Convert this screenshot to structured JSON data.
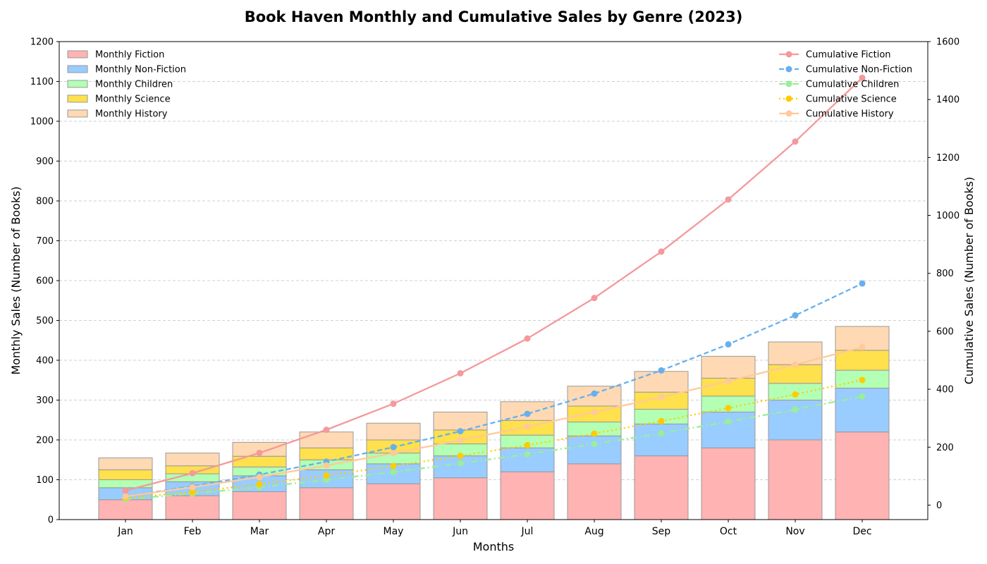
{
  "chart_data": {
    "type": "bar",
    "title": "Book Haven Monthly and Cumulative Sales by Genre (2023)",
    "xlabel": "Months",
    "ylabel": "Monthly Sales (Number of Books)",
    "y2label": "Cumulative Sales (Number of Books)",
    "categories": [
      "Jan",
      "Feb",
      "Mar",
      "Apr",
      "May",
      "Jun",
      "Jul",
      "Aug",
      "Sep",
      "Oct",
      "Nov",
      "Dec"
    ],
    "ylim": [
      0,
      1200
    ],
    "yticks": [
      0,
      100,
      200,
      300,
      400,
      500,
      600,
      700,
      800,
      900,
      1000,
      1100,
      1200
    ],
    "y2lim": [
      -50,
      1600
    ],
    "y2ticks": [
      0,
      200,
      400,
      600,
      800,
      1000,
      1200,
      1400,
      1600
    ],
    "grid": true,
    "bar_legend_placement": "top-left",
    "line_legend_placement": "top-right",
    "bar_series": [
      {
        "name": "Monthly Fiction",
        "color": "#ffb3b3",
        "values": [
          50,
          60,
          70,
          80,
          90,
          105,
          120,
          140,
          160,
          180,
          200,
          220
        ]
      },
      {
        "name": "Monthly Non-Fiction",
        "color": "#99ccff",
        "values": [
          30,
          35,
          40,
          45,
          50,
          55,
          60,
          70,
          80,
          90,
          100,
          110
        ]
      },
      {
        "name": "Monthly Children",
        "color": "#b3ffb3",
        "values": [
          20,
          20,
          22,
          25,
          27,
          30,
          32,
          35,
          37,
          40,
          42,
          45
        ]
      },
      {
        "name": "Monthly Science",
        "color": "#ffe04d",
        "values": [
          25,
          20,
          27,
          30,
          33,
          35,
          37,
          40,
          43,
          45,
          47,
          50
        ]
      },
      {
        "name": "Monthly History",
        "color": "#ffd9b3",
        "values": [
          30,
          32,
          35,
          40,
          42,
          45,
          47,
          50,
          52,
          55,
          57,
          60
        ]
      }
    ],
    "line_series": [
      {
        "name": "Cumulative Fiction",
        "color": "#f4999c",
        "dash": "solid",
        "values": [
          50,
          110,
          180,
          260,
          350,
          455,
          575,
          715,
          875,
          1055,
          1255,
          1475
        ]
      },
      {
        "name": "Cumulative Non-Fiction",
        "color": "#66b0ee",
        "dash": "dashed",
        "values": [
          30,
          65,
          105,
          150,
          200,
          255,
          315,
          385,
          465,
          555,
          655,
          765
        ]
      },
      {
        "name": "Cumulative Children",
        "color": "#99ee99",
        "dash": "dashdot",
        "values": [
          20,
          40,
          62,
          87,
          114,
          144,
          176,
          211,
          248,
          288,
          330,
          375
        ]
      },
      {
        "name": "Cumulative Science",
        "color": "#ffcc00",
        "dash": "dotted",
        "values": [
          25,
          45,
          72,
          102,
          135,
          170,
          207,
          247,
          290,
          335,
          382,
          432
        ]
      },
      {
        "name": "Cumulative History",
        "color": "#ffc999",
        "dash": "solid",
        "values": [
          30,
          62,
          97,
          137,
          179,
          224,
          271,
          321,
          373,
          428,
          485,
          545
        ]
      }
    ]
  }
}
